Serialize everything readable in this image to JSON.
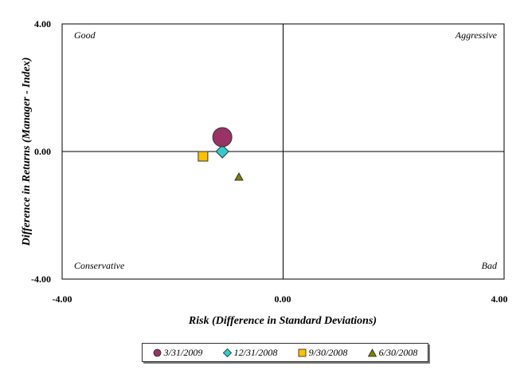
{
  "chart_data": {
    "type": "scatter",
    "title": "",
    "xlabel": "Risk (Difference in Standard Deviations)",
    "ylabel": "Difference in Returns (Manager - Index)",
    "xlim": [
      -4,
      4
    ],
    "ylim": [
      -4,
      4
    ],
    "x_ticks": [
      "-4.00",
      "0.00",
      "4.00"
    ],
    "y_ticks": [
      "4.00",
      "0.00",
      "-4.00"
    ],
    "grid": false,
    "legend_position": "bottom",
    "quadrant_labels": {
      "top_left": "Good",
      "top_right": "Aggressive",
      "bottom_left": "Conservative",
      "bottom_right": "Bad"
    },
    "series": [
      {
        "name": "3/31/2009",
        "marker": "circle",
        "color": "#993366",
        "x": -1.1,
        "y": 0.45
      },
      {
        "name": "12/31/2008",
        "marker": "diamond",
        "color": "#33CCCC",
        "x": -1.1,
        "y": 0.0
      },
      {
        "name": "9/30/2008",
        "marker": "square",
        "color": "#FFC000",
        "x": -1.45,
        "y": -0.15
      },
      {
        "name": "6/30/2008",
        "marker": "triangle",
        "color": "#808000",
        "x": -0.8,
        "y": -0.8
      }
    ]
  }
}
